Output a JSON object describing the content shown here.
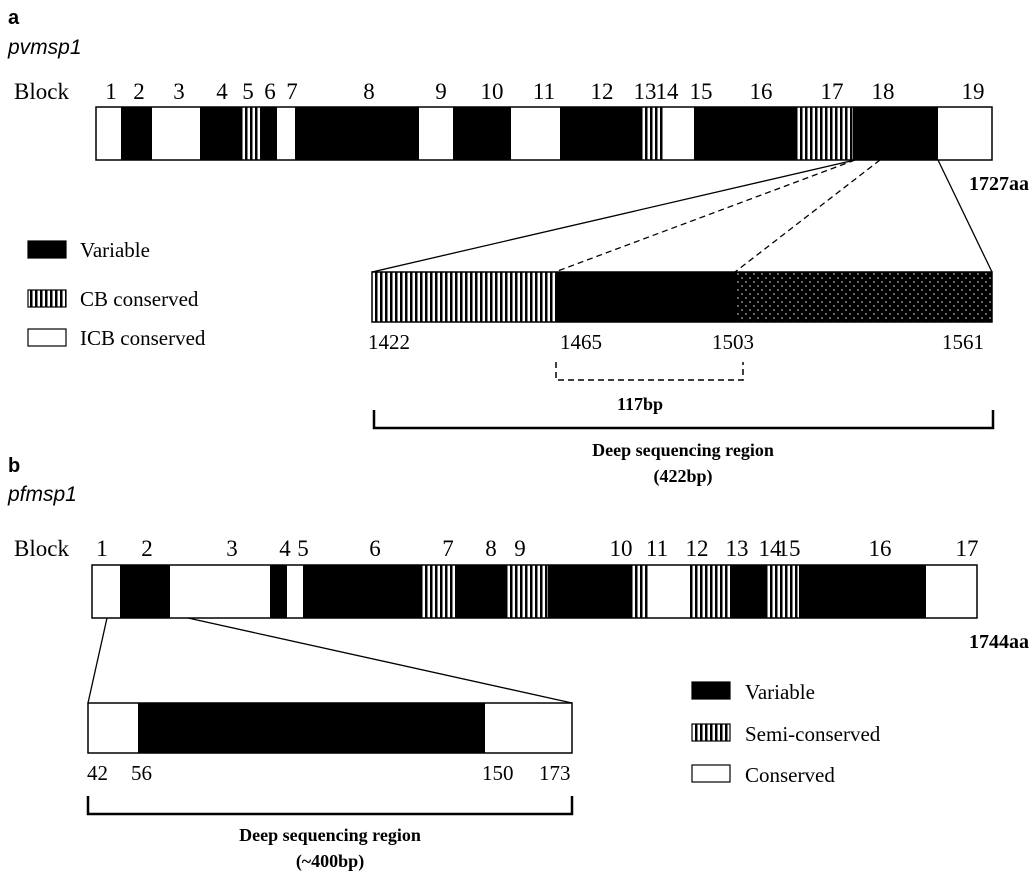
{
  "colors": {
    "ink": "#000000",
    "paper": "#ffffff"
  },
  "panel_a": {
    "label": "a",
    "gene": "pvmsp1",
    "block_word": "Block",
    "blocks": [
      {
        "num": "1",
        "type": "conserved"
      },
      {
        "num": "2",
        "type": "variable"
      },
      {
        "num": "3",
        "type": "conserved"
      },
      {
        "num": "4",
        "type": "variable"
      },
      {
        "num": "5",
        "type": "cb"
      },
      {
        "num": "6",
        "type": "variable"
      },
      {
        "num": "7",
        "type": "conserved"
      },
      {
        "num": "8",
        "type": "variable"
      },
      {
        "num": "9",
        "type": "conserved"
      },
      {
        "num": "10",
        "type": "variable"
      },
      {
        "num": "11",
        "type": "conserved"
      },
      {
        "num": "12",
        "type": "variable"
      },
      {
        "num": "13",
        "type": "cb"
      },
      {
        "num": "14",
        "type": "conserved"
      },
      {
        "num": "15",
        "type": "variable"
      },
      {
        "num": "16",
        "type": "variable"
      },
      {
        "num": "17",
        "type": "cb"
      },
      {
        "num": "18",
        "type": "variable"
      },
      {
        "num": "19",
        "type": "conserved"
      }
    ],
    "length_label": "1727aa",
    "legend": [
      {
        "type": "variable",
        "label": "Variable"
      },
      {
        "type": "cb",
        "label": "CB conserved"
      },
      {
        "type": "conserved",
        "label": "ICB conserved"
      }
    ],
    "zoom_positions": [
      "1422",
      "1465",
      "1503",
      "1561"
    ],
    "dashed_span_label": "117bp",
    "region_title": "Deep sequencing region",
    "region_size": "(422bp)"
  },
  "panel_b": {
    "label": "b",
    "gene": "pfmsp1",
    "block_word": "Block",
    "blocks": [
      {
        "num": "1",
        "type": "conserved"
      },
      {
        "num": "2",
        "type": "variable"
      },
      {
        "num": "3",
        "type": "conserved"
      },
      {
        "num": "4",
        "type": "variable"
      },
      {
        "num": "5",
        "type": "conserved"
      },
      {
        "num": "6",
        "type": "variable"
      },
      {
        "num": "7",
        "type": "semi"
      },
      {
        "num": "8",
        "type": "variable"
      },
      {
        "num": "9",
        "type": "semi"
      },
      {
        "num": "10",
        "type": "variable"
      },
      {
        "num": "11",
        "type": "semi"
      },
      {
        "num": "12",
        "type": "conserved"
      },
      {
        "num": "13",
        "type": "semi"
      },
      {
        "num": "14",
        "type": "variable"
      },
      {
        "num": "15",
        "type": "semi"
      },
      {
        "num": "16",
        "type": "variable"
      },
      {
        "num": "17",
        "type": "conserved"
      }
    ],
    "length_label": "1744aa",
    "legend": [
      {
        "type": "variable",
        "label": "Variable"
      },
      {
        "type": "semi",
        "label": "Semi-conserved"
      },
      {
        "type": "conserved",
        "label": "Conserved"
      }
    ],
    "zoom_positions": [
      "42",
      "56",
      "150",
      "173"
    ],
    "region_title": "Deep sequencing region",
    "region_size": "(~400bp)"
  }
}
